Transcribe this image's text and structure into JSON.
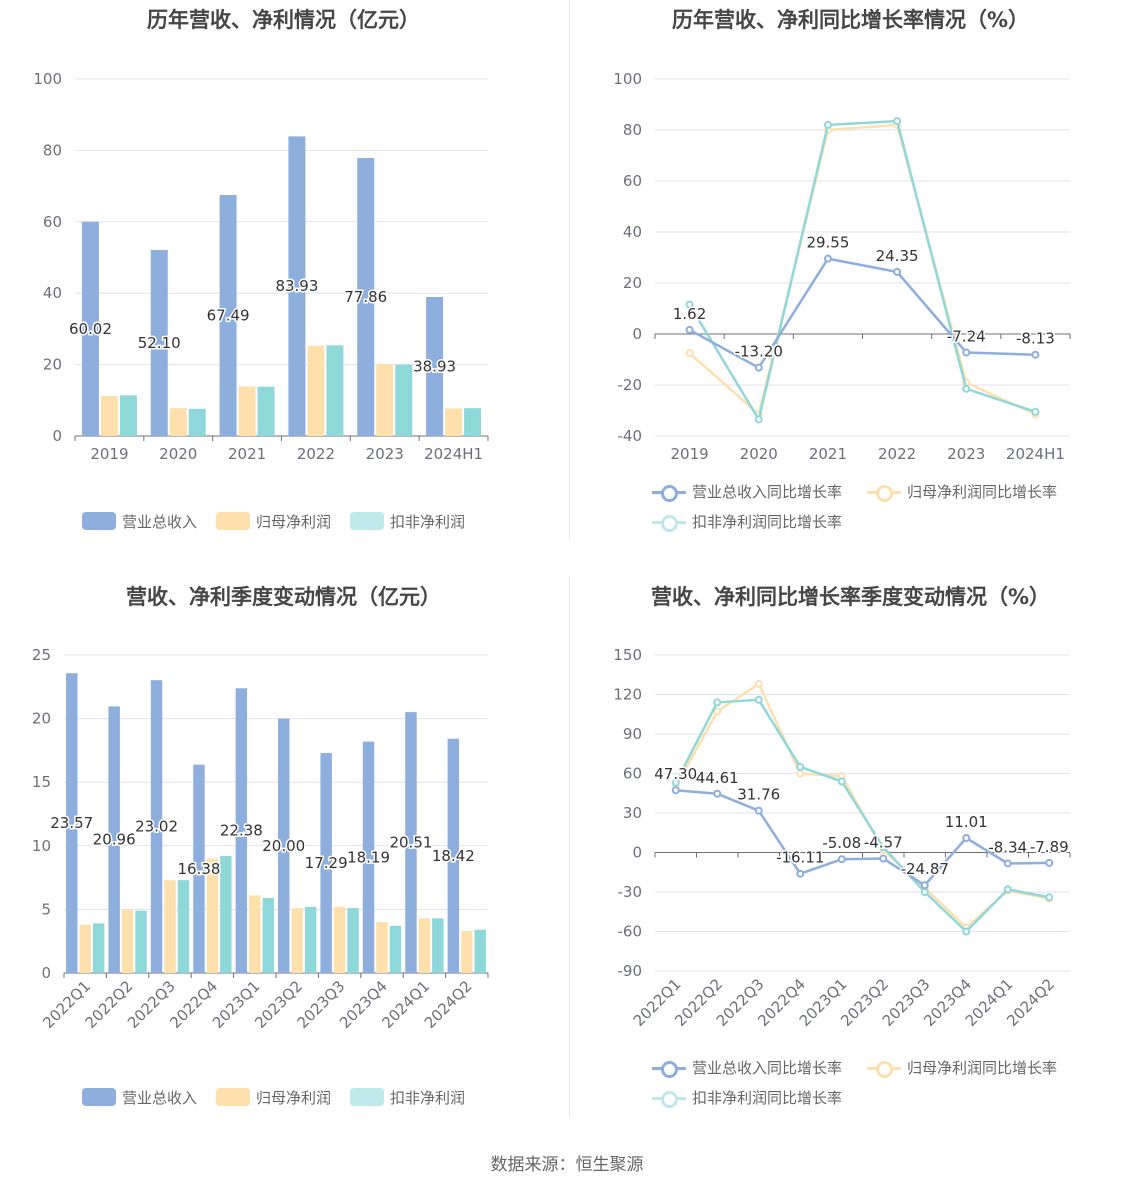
{
  "source": "数据来源：恒生聚源",
  "colors": {
    "revenue": "#8eaedd",
    "net": "#fde0ac",
    "deducted": "#8fd8da",
    "grid": "#e0e3ef",
    "axis": "#6e7079"
  },
  "chart_data": [
    {
      "id": "annual_bar",
      "type": "bar",
      "title": "历年营收、净利情况（亿元）",
      "categories": [
        "2019",
        "2020",
        "2021",
        "2022",
        "2023",
        "2024H1"
      ],
      "ylim": [
        0,
        100
      ],
      "yticks": [
        "0",
        "20",
        "40",
        "60",
        "80",
        "100"
      ],
      "series": [
        {
          "name": "营业总收入",
          "values": [
            60.02,
            52.1,
            67.49,
            83.93,
            77.86,
            38.93
          ],
          "labels": [
            "60.02",
            "52.10",
            "67.49",
            "83.93",
            "77.86",
            "38.93"
          ]
        },
        {
          "name": "归母净利润",
          "values": [
            11.2,
            7.8,
            13.9,
            25.3,
            20.2,
            7.7
          ]
        },
        {
          "name": "扣非净利润",
          "values": [
            11.4,
            7.6,
            13.8,
            25.4,
            20.0,
            7.8
          ]
        }
      ]
    },
    {
      "id": "annual_line",
      "type": "line",
      "title": "历年营收、净利同比增长率情况（%）",
      "categories": [
        "2019",
        "2020",
        "2021",
        "2022",
        "2023",
        "2024H1"
      ],
      "ylim": [
        -40,
        100
      ],
      "yticks": [
        "-40",
        "-20",
        "0",
        "20",
        "40",
        "60",
        "80",
        "100"
      ],
      "series": [
        {
          "name": "营业总收入同比增长率",
          "values": [
            1.62,
            -13.2,
            29.55,
            24.35,
            -7.24,
            -8.13
          ],
          "labels": [
            "1.62",
            "-13.20",
            "29.55",
            "24.35",
            "-7.24",
            "-8.13"
          ]
        },
        {
          "name": "归母净利润同比增长率",
          "values": [
            -7.5,
            -31.5,
            80.0,
            82.0,
            -19.0,
            -31.5
          ]
        },
        {
          "name": "扣非净利润同比增长率",
          "values": [
            11.5,
            -33.5,
            82.0,
            83.5,
            -21.5,
            -30.5
          ]
        }
      ]
    },
    {
      "id": "quarter_bar",
      "type": "bar",
      "title": "营收、净利季度变动情况（亿元）",
      "categories": [
        "2022Q1",
        "2022Q2",
        "2022Q3",
        "2022Q4",
        "2023Q1",
        "2023Q2",
        "2023Q3",
        "2023Q4",
        "2024Q1",
        "2024Q2"
      ],
      "ylim": [
        0,
        25
      ],
      "yticks": [
        "0",
        "5",
        "10",
        "15",
        "20",
        "25"
      ],
      "series": [
        {
          "name": "营业总收入",
          "values": [
            23.57,
            20.96,
            23.02,
            16.38,
            22.38,
            20.0,
            17.29,
            18.19,
            20.51,
            18.42
          ],
          "labels": [
            "23.57",
            "20.96",
            "23.02",
            "16.38",
            "22.38",
            "20.00",
            "17.29",
            "18.19",
            "20.51",
            "18.42"
          ]
        },
        {
          "name": "归母净利润",
          "values": [
            3.8,
            5.0,
            7.3,
            9.0,
            6.1,
            5.1,
            5.2,
            4.0,
            4.3,
            3.3
          ]
        },
        {
          "name": "扣非净利润",
          "values": [
            3.9,
            4.9,
            7.3,
            9.2,
            5.9,
            5.2,
            5.1,
            3.7,
            4.3,
            3.4
          ]
        }
      ]
    },
    {
      "id": "quarter_line",
      "type": "line",
      "title": "营收、净利同比增长率季度变动情况（%）",
      "categories": [
        "2022Q1",
        "2022Q2",
        "2022Q3",
        "2022Q4",
        "2023Q1",
        "2023Q2",
        "2023Q3",
        "2023Q4",
        "2024Q1",
        "2024Q2"
      ],
      "ylim": [
        -90,
        150
      ],
      "yticks": [
        "-90",
        "-60",
        "-30",
        "0",
        "30",
        "60",
        "90",
        "120",
        "150"
      ],
      "series": [
        {
          "name": "营业总收入同比增长率",
          "values": [
            47.3,
            44.61,
            31.76,
            -16.11,
            -5.08,
            -4.57,
            -24.87,
            11.01,
            -8.34,
            -7.89
          ],
          "labels": [
            "47.30",
            "44.61",
            "31.76",
            "-16.11",
            "-5.08",
            "-4.57",
            "-24.87",
            "11.01",
            "-8.34",
            "-7.89"
          ]
        },
        {
          "name": "归母净利润同比增长率",
          "values": [
            50.0,
            107.0,
            128.0,
            60.0,
            58.0,
            2.0,
            -27.0,
            -57.0,
            -29.0,
            -35.0
          ]
        },
        {
          "name": "扣非净利润同比增长率",
          "values": [
            53.0,
            114.0,
            116.0,
            65.0,
            54.0,
            4.0,
            -30.0,
            -60.0,
            -28.0,
            -34.0
          ]
        }
      ]
    }
  ]
}
